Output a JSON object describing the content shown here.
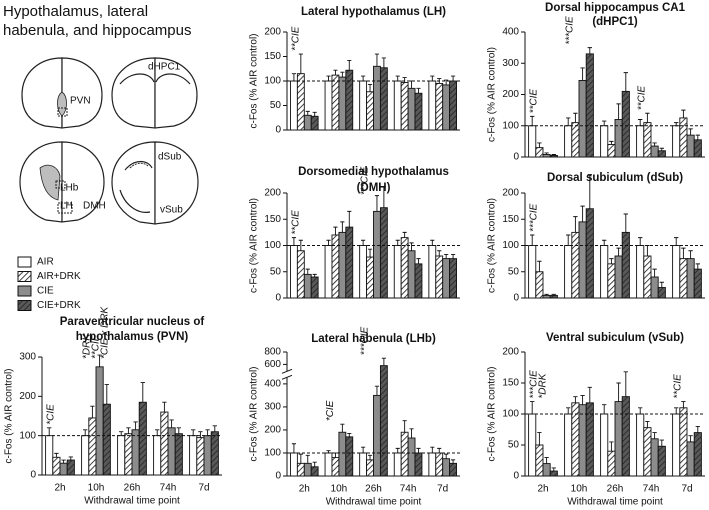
{
  "title": [
    "Hypothalamus, lateral",
    "habenula, and hippocampus"
  ],
  "diagram_labels": [
    "PVN",
    "dHPC1",
    "LHb",
    "LH",
    "DMH",
    "dSub",
    "vSub"
  ],
  "chart_data": [
    {
      "type": "bar",
      "title": [
        "Paraventricular nucleus of",
        "hypothalamus (PVN)"
      ],
      "ylabel": "c-Fos (% AIR control)",
      "xlabel": "Withdrawal time point",
      "categories": [
        "2h",
        "10h",
        "26h",
        "74h",
        "7d"
      ],
      "ylim": [
        0,
        300
      ],
      "yticks": [
        0,
        100,
        200,
        300
      ],
      "ref_line": 100,
      "series": [
        {
          "name": "AIR",
          "color": "#ffffff",
          "pattern": "none",
          "values": [
            100,
            100,
            100,
            100,
            100
          ],
          "errors": [
            20,
            15,
            10,
            15,
            15
          ]
        },
        {
          "name": "AIR+DRK",
          "color": "#ffffff",
          "pattern": "hatch",
          "values": [
            45,
            145,
            105,
            160,
            95
          ],
          "errors": [
            10,
            30,
            15,
            25,
            15
          ]
        },
        {
          "name": "CIE",
          "color": "#8c8c8c",
          "pattern": "none",
          "values": [
            30,
            275,
            115,
            120,
            100
          ],
          "errors": [
            8,
            30,
            20,
            20,
            15
          ]
        },
        {
          "name": "CIE+DRK",
          "color": "#595959",
          "pattern": "hatch",
          "values": [
            38,
            180,
            185,
            105,
            110
          ],
          "errors": [
            8,
            50,
            50,
            15,
            15
          ]
        }
      ],
      "annotations": [
        [
          "*CIE"
        ],
        [
          "*DRK",
          "**CIE",
          "*CIE x DRK"
        ],
        [],
        [],
        []
      ]
    },
    {
      "type": "bar",
      "title": [
        "Lateral hypothalamus (LH)"
      ],
      "ylabel": "c-Fos (% AIR control)",
      "ylim": [
        0,
        200
      ],
      "yticks": [
        0,
        50,
        100,
        150,
        200
      ],
      "ref_line": 100,
      "series": [
        {
          "name": "AIR",
          "color": "#ffffff",
          "pattern": "none",
          "values": [
            100,
            100,
            100,
            100,
            100
          ],
          "errors": [
            15,
            10,
            10,
            10,
            10
          ]
        },
        {
          "name": "AIR+DRK",
          "color": "#ffffff",
          "pattern": "hatch",
          "values": [
            115,
            112,
            78,
            97,
            95
          ],
          "errors": [
            40,
            10,
            15,
            10,
            10
          ]
        },
        {
          "name": "CIE",
          "color": "#8c8c8c",
          "pattern": "none",
          "values": [
            30,
            108,
            130,
            85,
            92
          ],
          "errors": [
            8,
            10,
            25,
            15,
            10
          ]
        },
        {
          "name": "CIE+DRK",
          "color": "#595959",
          "pattern": "hatch",
          "values": [
            28,
            122,
            127,
            75,
            100
          ],
          "errors": [
            8,
            20,
            20,
            10,
            10
          ]
        }
      ],
      "annotations": [
        [
          "**CIE"
        ],
        [],
        [],
        [],
        []
      ]
    },
    {
      "type": "bar",
      "title": [
        "Dorsomedial hypothalamus",
        "(DMH)"
      ],
      "ylabel": "c-Fos (% AIR control)",
      "ylim": [
        0,
        200
      ],
      "yticks": [
        0,
        50,
        100,
        150,
        200
      ],
      "ref_line": 100,
      "series": [
        {
          "name": "AIR",
          "color": "#ffffff",
          "pattern": "none",
          "values": [
            100,
            100,
            100,
            100,
            100
          ],
          "errors": [
            15,
            10,
            10,
            10,
            10
          ]
        },
        {
          "name": "AIR+DRK",
          "color": "#ffffff",
          "pattern": "hatch",
          "values": [
            90,
            120,
            78,
            115,
            80
          ],
          "errors": [
            20,
            15,
            15,
            10,
            10
          ]
        },
        {
          "name": "CIE",
          "color": "#8c8c8c",
          "pattern": "none",
          "values": [
            45,
            125,
            165,
            90,
            75
          ],
          "errors": [
            10,
            20,
            30,
            15,
            8
          ]
        },
        {
          "name": "CIE+DRK",
          "color": "#595959",
          "pattern": "hatch",
          "values": [
            40,
            135,
            172,
            65,
            75
          ],
          "errors": [
            5,
            30,
            40,
            10,
            8
          ]
        }
      ],
      "annotations": [
        [
          "**CIE"
        ],
        [],
        [
          "***CIE"
        ],
        [],
        []
      ]
    },
    {
      "type": "bar",
      "title": [
        "Lateral habenula (LHb)"
      ],
      "ylabel": "c-Fos (% AIR control)",
      "xlabel": "Withdrawal time point",
      "categories": [
        "2h",
        "10h",
        "26h",
        "74h",
        "7d"
      ],
      "ylim": [
        0,
        800
      ],
      "yticks": [
        0,
        100,
        200,
        300,
        400,
        600,
        800
      ],
      "axis_break": [
        420,
        520
      ],
      "ref_line": 100,
      "series": [
        {
          "name": "AIR",
          "color": "#ffffff",
          "pattern": "none",
          "values": [
            100,
            100,
            100,
            100,
            100
          ],
          "errors": [
            40,
            10,
            25,
            20,
            25
          ]
        },
        {
          "name": "AIR+DRK",
          "color": "#ffffff",
          "pattern": "hatch",
          "values": [
            55,
            80,
            70,
            190,
            100
          ],
          "errors": [
            40,
            20,
            20,
            50,
            20
          ]
        },
        {
          "name": "CIE",
          "color": "#8c8c8c",
          "pattern": "none",
          "values": [
            55,
            190,
            350,
            165,
            75
          ],
          "errors": [
            35,
            35,
            40,
            40,
            20
          ]
        },
        {
          "name": "CIE+DRK",
          "color": "#595959",
          "pattern": "hatch",
          "values": [
            40,
            170,
            580,
            100,
            55
          ],
          "errors": [
            20,
            15,
            120,
            20,
            15
          ]
        }
      ],
      "annotations": [
        [],
        [
          "*CIE"
        ],
        [
          "***CIE"
        ],
        [],
        []
      ]
    },
    {
      "type": "bar",
      "title": [
        "Dorsal hippocampus CA1",
        "(dHPC1)"
      ],
      "ylabel": "c-Fos (% AIR control)",
      "ylim": [
        0,
        400
      ],
      "yticks": [
        0,
        100,
        200,
        300,
        400
      ],
      "ref_line": 100,
      "series": [
        {
          "name": "AIR",
          "color": "#ffffff",
          "pattern": "none",
          "values": [
            100,
            100,
            100,
            100,
            100
          ],
          "errors": [
            30,
            25,
            15,
            20,
            10
          ]
        },
        {
          "name": "AIR+DRK",
          "color": "#ffffff",
          "pattern": "hatch",
          "values": [
            30,
            110,
            40,
            110,
            125
          ],
          "errors": [
            15,
            30,
            10,
            30,
            25
          ]
        },
        {
          "name": "CIE",
          "color": "#8c8c8c",
          "pattern": "none",
          "values": [
            8,
            245,
            120,
            35,
            70
          ],
          "errors": [
            5,
            40,
            50,
            10,
            20
          ]
        },
        {
          "name": "CIE+DRK",
          "color": "#595959",
          "pattern": "hatch",
          "values": [
            5,
            330,
            210,
            20,
            55
          ],
          "errors": [
            3,
            20,
            60,
            8,
            15
          ]
        }
      ],
      "annotations": [
        [
          "**CIE"
        ],
        [
          "***CIE"
        ],
        [],
        [
          "**CIE"
        ],
        []
      ]
    },
    {
      "type": "bar",
      "title": [
        "Dorsal subiculum (dSub)"
      ],
      "ylabel": "c-Fos (% AIR control)",
      "ylim": [
        0,
        200
      ],
      "yticks": [
        0,
        50,
        100,
        150,
        200
      ],
      "ref_line": 100,
      "series": [
        {
          "name": "AIR",
          "color": "#ffffff",
          "pattern": "none",
          "values": [
            100,
            100,
            100,
            100,
            100
          ],
          "errors": [
            20,
            20,
            10,
            15,
            15
          ]
        },
        {
          "name": "AIR+DRK",
          "color": "#ffffff",
          "pattern": "hatch",
          "values": [
            50,
            125,
            65,
            80,
            75
          ],
          "errors": [
            20,
            30,
            10,
            20,
            20
          ]
        },
        {
          "name": "CIE",
          "color": "#8c8c8c",
          "pattern": "none",
          "values": [
            5,
            145,
            80,
            40,
            75
          ],
          "errors": [
            2,
            30,
            15,
            15,
            15
          ]
        },
        {
          "name": "CIE+DRK",
          "color": "#595959",
          "pattern": "hatch",
          "values": [
            5,
            170,
            125,
            20,
            55
          ],
          "errors": [
            2,
            65,
            35,
            10,
            10
          ]
        }
      ],
      "annotations": [
        [
          "***CIE"
        ],
        [],
        [],
        [],
        []
      ]
    },
    {
      "type": "bar",
      "title": [
        "Ventral subiculum (vSub)"
      ],
      "ylabel": "c-Fos (% AIR control)",
      "xlabel": "Withdrawal time point",
      "categories": [
        "2h",
        "10h",
        "26h",
        "74h",
        "7d"
      ],
      "ylim": [
        0,
        200
      ],
      "yticks": [
        0,
        50,
        100,
        150,
        200
      ],
      "ref_line": 100,
      "series": [
        {
          "name": "AIR",
          "color": "#ffffff",
          "pattern": "none",
          "values": [
            100,
            100,
            100,
            100,
            100
          ],
          "errors": [
            20,
            10,
            15,
            10,
            10
          ]
        },
        {
          "name": "AIR+DRK",
          "color": "#ffffff",
          "pattern": "hatch",
          "values": [
            50,
            118,
            40,
            78,
            110
          ],
          "errors": [
            20,
            10,
            15,
            10,
            10
          ]
        },
        {
          "name": "CIE",
          "color": "#8c8c8c",
          "pattern": "none",
          "values": [
            20,
            115,
            120,
            60,
            55
          ],
          "errors": [
            10,
            15,
            30,
            10,
            10
          ]
        },
        {
          "name": "CIE+DRK",
          "color": "#595959",
          "pattern": "hatch",
          "values": [
            8,
            118,
            128,
            48,
            70
          ],
          "errors": [
            5,
            25,
            40,
            10,
            10
          ]
        }
      ],
      "annotations": [
        [
          "***CIE",
          "*DRK"
        ],
        [],
        [],
        [],
        [
          "**CIE"
        ]
      ]
    }
  ]
}
